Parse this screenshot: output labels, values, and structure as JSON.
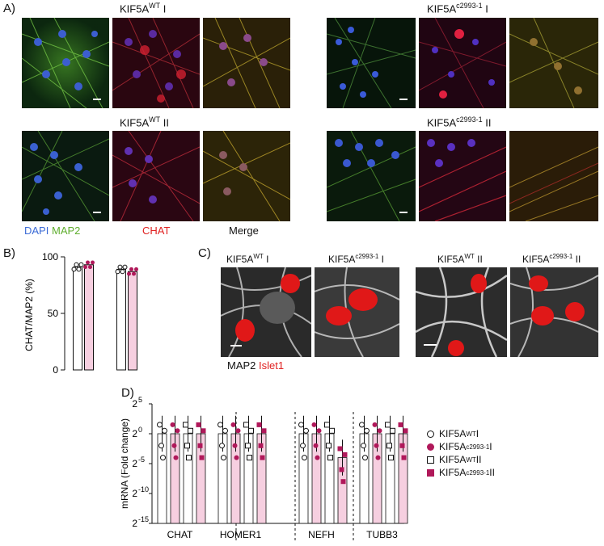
{
  "panel_a": {
    "letter": "A)",
    "groups": [
      {
        "name": "KIF5A",
        "sup": "WT",
        "suffix": " I"
      },
      {
        "name": "KIF5A",
        "sup": "c2993-1",
        "suffix": " I"
      },
      {
        "name": "KIF5A",
        "sup": "WT",
        "suffix": " II"
      },
      {
        "name": "KIF5A",
        "sup": "c2993-1",
        "suffix": " II"
      }
    ],
    "channel_legend": [
      {
        "label": "DAPI",
        "color": "#3b6bd6"
      },
      {
        "label": "MAP2",
        "color": "#5fae2e"
      },
      {
        "label": "CHAT",
        "color": "#e02020"
      },
      {
        "label": "Merge",
        "color": "#111111"
      }
    ]
  },
  "panel_b": {
    "letter": "B)",
    "chart_data": {
      "type": "bar",
      "ylabel": "CHAT/MAP2 (%)",
      "ylim": [
        0,
        100
      ],
      "yticks": [
        "0",
        "50",
        "100"
      ],
      "series": [
        {
          "values": [
            91,
            93,
            89,
            87
          ],
          "colors": [
            "#ffffff",
            "#f6cfe0",
            "#ffffff",
            "#f6cfe0"
          ]
        }
      ]
    }
  },
  "panel_c": {
    "letter": "C)",
    "titles": [
      {
        "name": "KIF5A",
        "sup": "WT",
        "suffix": " I"
      },
      {
        "name": "KIF5A",
        "sup": "c2993-1",
        "suffix": " I"
      },
      {
        "name": "KIF5A",
        "sup": "WT",
        "suffix": " II"
      },
      {
        "name": "KIF5A",
        "sup": "c2993-1",
        "suffix": " II"
      }
    ],
    "legend": [
      {
        "label": "MAP2",
        "color": "#111111"
      },
      {
        "label": "Islet1",
        "color": "#e02020"
      }
    ]
  },
  "panel_d": {
    "letter": "D)",
    "chart_data": {
      "type": "bar",
      "ylabel": "mRNA (Fold change)",
      "y_scale": "log2",
      "yticks": [
        {
          "base": "2",
          "exp": "5"
        },
        {
          "base": "2",
          "exp": "0"
        },
        {
          "base": "2",
          "exp": "-5"
        },
        {
          "base": "2",
          "exp": "-10"
        },
        {
          "base": "2",
          "exp": "-15"
        }
      ],
      "ylim_exponent": [
        -15,
        5
      ],
      "categories": [
        "CHAT",
        "HOMER1",
        "NEFH",
        "TUBB3"
      ],
      "series": [
        {
          "label": {
            "name": "KIF5A",
            "sup": "WT",
            "suffix": " I"
          },
          "marker": "open-circle",
          "values_log2": [
            0,
            0,
            0,
            0
          ]
        },
        {
          "label": {
            "name": "KIF5A",
            "sup": "c2993-1",
            "suffix": " I"
          },
          "marker": "filled-circle",
          "values_log2": [
            0,
            0,
            0,
            0
          ]
        },
        {
          "label": {
            "name": "KIF5A",
            "sup": "WT",
            "suffix": " II"
          },
          "marker": "open-square",
          "values_log2": [
            0,
            0,
            0,
            0
          ]
        },
        {
          "label": {
            "name": "KIF5A",
            "sup": "c2993-1",
            "suffix": " II"
          },
          "marker": "filled-square",
          "values_log2": [
            0,
            0,
            -4,
            0
          ]
        }
      ],
      "colors": {
        "wt": "#ffffff",
        "mut": "#f6cfe0",
        "marker_mut": "#b0185a"
      }
    }
  }
}
